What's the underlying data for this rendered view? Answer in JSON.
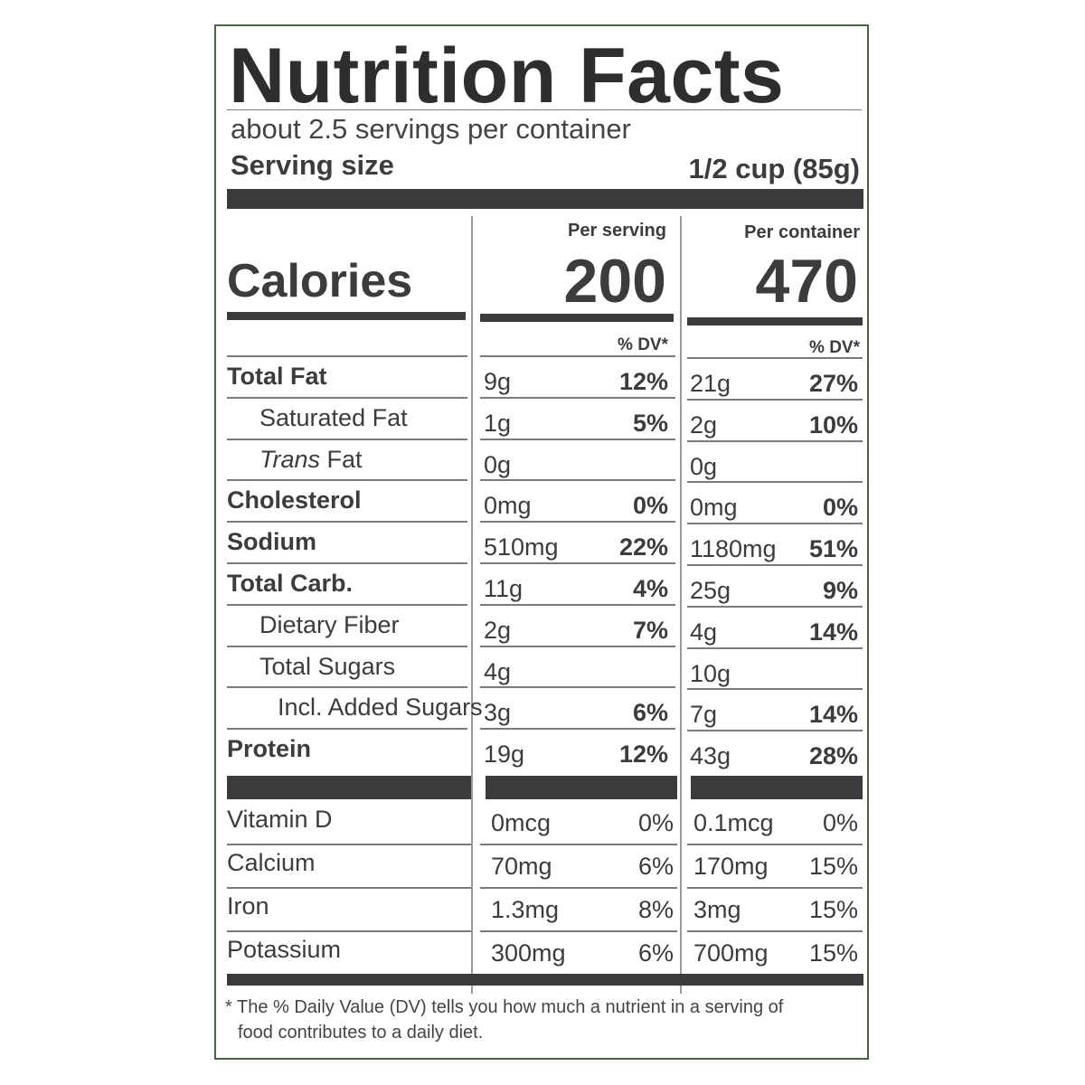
{
  "title": "Nutrition Facts",
  "servings_per_container": "about 2.5 servings per container",
  "serving_size_label": "Serving size",
  "serving_size_value": "1/2 cup (85g)",
  "per_serving_label": "Per serving",
  "per_container_label": "Per container",
  "calories_label": "Calories",
  "calories_serving": "200",
  "calories_container": "470",
  "dv_label": "% DV*",
  "nutrients": [
    {
      "name": "Total Fat",
      "s_amt": "9g",
      "s_dv": "12%",
      "c_amt": "21g",
      "c_dv": "27%"
    },
    {
      "name": "Saturated Fat",
      "s_amt": "1g",
      "s_dv": "5%",
      "c_amt": "2g",
      "c_dv": "10%"
    },
    {
      "name_italic": "Trans",
      "name_rest": " Fat",
      "s_amt": "0g",
      "s_dv": "",
      "c_amt": "0g",
      "c_dv": ""
    },
    {
      "name": "Cholesterol",
      "s_amt": "0mg",
      "s_dv": "0%",
      "c_amt": "0mg",
      "c_dv": "0%"
    },
    {
      "name": "Sodium",
      "s_amt": "510mg",
      "s_dv": "22%",
      "c_amt": "1180mg",
      "c_dv": "51%"
    },
    {
      "name": "Total Carb.",
      "s_amt": "11g",
      "s_dv": "4%",
      "c_amt": "25g",
      "c_dv": "9%"
    },
    {
      "name": "Dietary Fiber",
      "s_amt": "2g",
      "s_dv": "7%",
      "c_amt": "4g",
      "c_dv": "14%"
    },
    {
      "name": "Total Sugars",
      "s_amt": "4g",
      "s_dv": "",
      "c_amt": "10g",
      "c_dv": ""
    },
    {
      "name": "Incl. Added Sugars",
      "s_amt": "3g",
      "s_dv": "6%",
      "c_amt": "7g",
      "c_dv": "14%"
    },
    {
      "name": "Protein",
      "s_amt": "19g",
      "s_dv": "12%",
      "c_amt": "43g",
      "c_dv": "28%"
    }
  ],
  "vitamins": [
    {
      "name": "Vitamin D",
      "s_amt": "0mcg",
      "s_dv": "0%",
      "c_amt": "0.1mcg",
      "c_dv": "0%"
    },
    {
      "name": "Calcium",
      "s_amt": "70mg",
      "s_dv": "6%",
      "c_amt": "170mg",
      "c_dv": "15%"
    },
    {
      "name": "Iron",
      "s_amt": "1.3mg",
      "s_dv": "8%",
      "c_amt": "3mg",
      "c_dv": "15%"
    },
    {
      "name": "Potassium",
      "s_amt": "300mg",
      "s_dv": "6%",
      "c_amt": "700mg",
      "c_dv": "15%"
    }
  ],
  "footnote_line1": "* The % Daily Value (DV) tells you how much a nutrient in a serving of",
  "footnote_line2": "food contributes to a daily diet."
}
